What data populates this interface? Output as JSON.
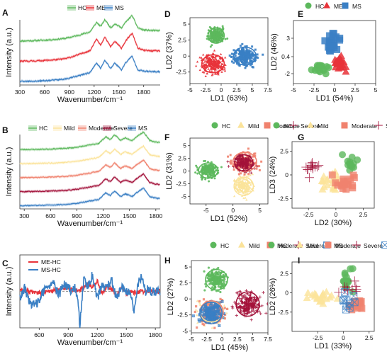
{
  "chart_data": [
    {
      "panel": "A",
      "type": "line",
      "legend": [
        "HC",
        "ME",
        "MS"
      ],
      "colors": [
        "#5cb85c",
        "#e8333a",
        "#3a7fc4"
      ],
      "xlabel": "Wavenumber/cm⁻¹",
      "ylabel": "Intensity (a.u.)",
      "xlim": [
        300,
        2000
      ],
      "xticks": [
        300,
        600,
        900,
        1200,
        1500,
        1800
      ],
      "series": [
        {
          "name": "HC",
          "x": [
            300,
            450,
            600,
            750,
            860,
            1000,
            1090,
            1150,
            1230,
            1280,
            1330,
            1400,
            1450,
            1530,
            1580,
            1660,
            1730,
            1800,
            1900,
            2000
          ],
          "y": [
            0.02,
            0.03,
            0.05,
            0.08,
            0.12,
            0.22,
            0.3,
            0.35,
            0.7,
            0.55,
            0.8,
            0.5,
            0.65,
            0.5,
            0.7,
            0.95,
            0.5,
            0.42,
            0.4,
            0.4
          ]
        },
        {
          "name": "ME",
          "x": [
            300,
            450,
            600,
            750,
            860,
            1000,
            1090,
            1150,
            1230,
            1280,
            1330,
            1400,
            1450,
            1530,
            1580,
            1660,
            1730,
            1800,
            1900,
            2000
          ],
          "y": [
            0.02,
            0.03,
            0.05,
            0.08,
            0.12,
            0.25,
            0.35,
            0.4,
            0.85,
            0.6,
            0.9,
            0.55,
            0.75,
            0.5,
            0.75,
            1.05,
            0.5,
            0.42,
            0.4,
            0.4
          ]
        },
        {
          "name": "MS",
          "x": [
            300,
            450,
            600,
            750,
            860,
            1000,
            1090,
            1150,
            1230,
            1280,
            1330,
            1400,
            1450,
            1530,
            1580,
            1660,
            1730,
            1800,
            1900,
            2000
          ],
          "y": [
            0.02,
            0.03,
            0.05,
            0.08,
            0.12,
            0.22,
            0.3,
            0.35,
            0.7,
            0.5,
            0.8,
            0.5,
            0.7,
            0.45,
            0.7,
            0.95,
            0.45,
            0.4,
            0.38,
            0.38
          ]
        }
      ]
    },
    {
      "panel": "B",
      "type": "line",
      "legend": [
        "HC",
        "Mild",
        "Moderate",
        "Severe",
        "MS"
      ],
      "colors": [
        "#5cb85c",
        "#fbe39a",
        "#f0826e",
        "#a3123a",
        "#3a7fc4"
      ],
      "xlabel": "Wavenumber/cm⁻¹",
      "ylabel": "Intensity (a.u.)",
      "xlim": [
        250,
        1850
      ],
      "xticks": [
        300,
        600,
        900,
        1200,
        1500,
        1800
      ],
      "series": [
        {
          "name": "HC",
          "x": [
            250,
            450,
            600,
            750,
            860,
            1000,
            1090,
            1150,
            1230,
            1280,
            1330,
            1400,
            1450,
            1530,
            1580,
            1660,
            1730,
            1800,
            1850
          ],
          "y": [
            0.02,
            0.03,
            0.05,
            0.08,
            0.12,
            0.22,
            0.3,
            0.35,
            0.7,
            0.55,
            0.8,
            0.5,
            0.65,
            0.5,
            0.7,
            0.95,
            0.5,
            0.42,
            0.4
          ]
        },
        {
          "name": "Mild",
          "x": [
            250,
            450,
            600,
            750,
            860,
            1000,
            1090,
            1150,
            1230,
            1280,
            1330,
            1400,
            1450,
            1530,
            1580,
            1660,
            1730,
            1800,
            1850
          ],
          "y": [
            0.02,
            0.03,
            0.05,
            0.08,
            0.12,
            0.22,
            0.3,
            0.35,
            0.7,
            0.55,
            0.8,
            0.5,
            0.65,
            0.5,
            0.7,
            0.95,
            0.5,
            0.42,
            0.4
          ]
        },
        {
          "name": "Moderate",
          "x": [
            250,
            450,
            600,
            750,
            860,
            1000,
            1090,
            1150,
            1230,
            1280,
            1330,
            1400,
            1450,
            1530,
            1580,
            1660,
            1730,
            1800,
            1850
          ],
          "y": [
            0.02,
            0.03,
            0.05,
            0.08,
            0.12,
            0.22,
            0.3,
            0.35,
            0.7,
            0.55,
            0.8,
            0.5,
            0.65,
            0.5,
            0.7,
            0.95,
            0.5,
            0.42,
            0.4
          ]
        },
        {
          "name": "Severe",
          "x": [
            250,
            450,
            600,
            750,
            860,
            1000,
            1090,
            1150,
            1230,
            1280,
            1330,
            1400,
            1450,
            1530,
            1580,
            1660,
            1730,
            1800,
            1850
          ],
          "y": [
            0.02,
            0.03,
            0.05,
            0.08,
            0.12,
            0.22,
            0.3,
            0.35,
            0.7,
            0.55,
            0.8,
            0.5,
            0.65,
            0.5,
            0.7,
            0.95,
            0.5,
            0.42,
            0.4
          ]
        },
        {
          "name": "MS",
          "x": [
            250,
            450,
            600,
            750,
            860,
            1000,
            1090,
            1150,
            1230,
            1280,
            1330,
            1400,
            1450,
            1530,
            1580,
            1660,
            1730,
            1800,
            1850
          ],
          "y": [
            0.02,
            0.03,
            0.05,
            0.08,
            0.12,
            0.22,
            0.3,
            0.35,
            0.7,
            0.55,
            0.8,
            0.5,
            0.65,
            0.5,
            0.7,
            0.95,
            0.5,
            0.42,
            0.4
          ]
        }
      ]
    },
    {
      "panel": "C",
      "type": "line",
      "legend": [
        "ME-HC",
        "MS-HC"
      ],
      "colors": [
        "#e8333a",
        "#3a7fc4"
      ],
      "xlabel": "Wavenumber/cm⁻¹",
      "ylabel": "Intensity (a.u.)",
      "xlim": [
        400,
        1850
      ],
      "ylim": [
        -1,
        1
      ],
      "xticks": [
        600,
        900,
        1200,
        1500,
        1800
      ],
      "series": [
        {
          "name": "ME-HC",
          "x": [
            400,
            500,
            600,
            700,
            800,
            900,
            950,
            1000,
            1050,
            1100,
            1150,
            1200,
            1250,
            1300,
            1350,
            1400,
            1450,
            1500,
            1550,
            1600,
            1650,
            1700,
            1750,
            1800,
            1850
          ],
          "y": [
            0.05,
            0.0,
            -0.05,
            0.0,
            0.05,
            0.1,
            0.05,
            0.0,
            0.1,
            0.2,
            0.1,
            0.3,
            -0.1,
            0.15,
            0.05,
            -0.1,
            0.1,
            -0.05,
            0.0,
            -0.05,
            0.0,
            0.0,
            0.0,
            0.0,
            0.0
          ]
        },
        {
          "name": "MS-HC",
          "x": [
            400,
            450,
            500,
            560,
            620,
            680,
            740,
            800,
            860,
            900,
            930,
            970,
            1000,
            1020,
            1060,
            1100,
            1150,
            1200,
            1250,
            1300,
            1350,
            1400,
            1450,
            1500,
            1550,
            1580,
            1620,
            1660,
            1700,
            1720,
            1760,
            1800,
            1850
          ],
          "y": [
            -0.2,
            0.1,
            -0.3,
            -0.4,
            -0.1,
            0.1,
            0.25,
            -0.1,
            0.2,
            0.1,
            0.0,
            0.1,
            -0.3,
            -0.9,
            0.3,
            0.1,
            0.45,
            -0.2,
            0.15,
            0.1,
            0.3,
            -0.2,
            0.1,
            0.0,
            -0.1,
            -0.6,
            0.2,
            0.4,
            0.0,
            0.05,
            0.0,
            0.0,
            0.0
          ]
        }
      ]
    },
    {
      "panel": "D",
      "type": "scatter",
      "legend": [
        "HC",
        "ME",
        "MS"
      ],
      "colors": [
        "#5cb85c",
        "#e8333a",
        "#3a7fc4"
      ],
      "xlabel": "LD1 (63%)",
      "ylabel": "LD2 (37%)",
      "xlim": [
        -5,
        7.5
      ],
      "ylim": [
        -4.3,
        6
      ],
      "xticks": [
        -5.0,
        -2.5,
        0.0,
        2.5,
        5.0,
        7.5
      ],
      "yticks": [
        -2.5,
        0.0,
        2.5,
        5.0
      ],
      "clusters": [
        {
          "name": "HC",
          "center": [
            -0.8,
            3.2
          ],
          "spread": [
            1.3,
            1.2
          ],
          "n": 220,
          "marker": "circle"
        },
        {
          "name": "ME",
          "center": [
            -1.3,
            -1.2
          ],
          "spread": [
            1.8,
            1.4
          ],
          "n": 260,
          "marker": "triangle"
        },
        {
          "name": "MS",
          "center": [
            3.8,
            0.0
          ],
          "spread": [
            1.8,
            1.4
          ],
          "n": 240,
          "marker": "square"
        }
      ]
    },
    {
      "panel": "E",
      "type": "scatter",
      "legend": [
        "HC",
        "ME",
        "MS"
      ],
      "colors": [
        "#5cb85c",
        "#e8333a",
        "#3a7fc4"
      ],
      "xlabel": "LD1 (54%)",
      "ylabel": "LD2 (46%)",
      "xlim": [
        -5,
        5
      ],
      "ylim": [
        -3.4,
        5.5
      ],
      "xticks": [
        -5.0,
        -2.5,
        0.0,
        2.5,
        5.0
      ],
      "yticks": [
        -2.0,
        0.4,
        3.0
      ],
      "clusters": [
        {
          "name": "HC",
          "center": [
            -1.8,
            -1.2
          ],
          "spread": [
            1.3,
            0.7
          ],
          "n": 16,
          "marker": "circle"
        },
        {
          "name": "ME",
          "center": [
            0.8,
            -0.6
          ],
          "spread": [
            0.9,
            0.9
          ],
          "n": 28,
          "marker": "triangle"
        },
        {
          "name": "MS",
          "center": [
            0.0,
            2.4
          ],
          "spread": [
            1.0,
            1.3
          ],
          "n": 20,
          "marker": "square"
        }
      ]
    },
    {
      "panel": "F",
      "type": "scatter",
      "legend": [
        "HC",
        "Mild",
        "Moderate",
        "Severe"
      ],
      "colors": [
        "#5cb85c",
        "#fbe39a",
        "#f0826e",
        "#a3123a"
      ],
      "xlabel": "LD1 (52%)",
      "ylabel": "LD2 (31%)",
      "xlim": [
        -8,
        6.5
      ],
      "ylim": [
        -6.5,
        6.5
      ],
      "xticks": [
        -5,
        0,
        5
      ],
      "yticks": [
        -5.0,
        -2.5,
        0.0,
        2.5,
        5.0
      ],
      "clusters": [
        {
          "name": "HC",
          "center": [
            -4.6,
            0.1
          ],
          "spread": [
            1.8,
            1.5
          ],
          "n": 200,
          "marker": "circle"
        },
        {
          "name": "Mild",
          "center": [
            2.0,
            -3.0
          ],
          "spread": [
            1.8,
            1.8
          ],
          "n": 200,
          "marker": "triangle"
        },
        {
          "name": "Moderate",
          "center": [
            2.2,
            1.8
          ],
          "spread": [
            2.2,
            1.9
          ],
          "n": 180,
          "marker": "square"
        },
        {
          "name": "Severe",
          "center": [
            2.0,
            1.6
          ],
          "spread": [
            1.7,
            1.6
          ],
          "n": 180,
          "marker": "plus"
        }
      ]
    },
    {
      "panel": "G",
      "type": "scatter",
      "legend": [
        "HC",
        "Mild",
        "Moderate",
        "Severe"
      ],
      "colors": [
        "#5cb85c",
        "#fbe39a",
        "#f0826e",
        "#a3123a"
      ],
      "xlabel": "LD2 (30%)",
      "ylabel": "LD3 (24%)",
      "xlim": [
        -4,
        3.5
      ],
      "ylim": [
        -3.5,
        3.5
      ],
      "xticks": [
        -2.5,
        0.0,
        2.5
      ],
      "yticks": [
        -2.5,
        0.0,
        2.5
      ],
      "clusters": [
        {
          "name": "HC",
          "center": [
            1.2,
            1.4
          ],
          "spread": [
            0.9,
            1.0
          ],
          "n": 14,
          "marker": "circle"
        },
        {
          "name": "Mild",
          "center": [
            -0.5,
            -0.8
          ],
          "spread": [
            1.0,
            1.2
          ],
          "n": 22,
          "marker": "triangle"
        },
        {
          "name": "Moderate",
          "center": [
            0.8,
            -0.8
          ],
          "spread": [
            1.3,
            1.2
          ],
          "n": 18,
          "marker": "square"
        },
        {
          "name": "Severe",
          "center": [
            -2.2,
            0.9
          ],
          "spread": [
            0.7,
            1.0
          ],
          "n": 14,
          "marker": "plus"
        }
      ]
    },
    {
      "panel": "H",
      "type": "scatter",
      "legend": [
        "HC",
        "Mild",
        "Moderate",
        "Severe",
        "MS"
      ],
      "colors": [
        "#5cb85c",
        "#fbe39a",
        "#f0826e",
        "#a3123a",
        "#3a7fc4"
      ],
      "xlabel": "LD1 (45%)",
      "ylabel": "LD2 (27%)",
      "xlim": [
        -5,
        7.5
      ],
      "ylim": [
        -5.3,
        6
      ],
      "xticks": [
        -5.0,
        -2.5,
        0.0,
        2.5,
        5.0,
        7.5
      ],
      "yticks": [
        -5.0,
        -2.5,
        0.0,
        2.5,
        5.0
      ],
      "clusters": [
        {
          "name": "HC",
          "center": [
            -0.9,
            3.0
          ],
          "spread": [
            1.8,
            1.6
          ],
          "n": 200,
          "marker": "circle"
        },
        {
          "name": "Mild",
          "center": [
            -1.7,
            -2.0
          ],
          "spread": [
            1.9,
            1.6
          ],
          "n": 160,
          "marker": "triangle"
        },
        {
          "name": "Moderate",
          "center": [
            -1.7,
            -2.1
          ],
          "spread": [
            1.9,
            1.8
          ],
          "n": 140,
          "marker": "square"
        },
        {
          "name": "MS",
          "center": [
            -1.8,
            -2.2
          ],
          "spread": [
            1.8,
            1.7
          ],
          "n": 150,
          "marker": "xsquare"
        },
        {
          "name": "Severe",
          "center": [
            4.2,
            -0.8
          ],
          "spread": [
            1.9,
            1.9
          ],
          "n": 220,
          "marker": "plus"
        }
      ]
    },
    {
      "panel": "I",
      "type": "scatter",
      "legend": [
        "HC",
        "Mild",
        "Moderate",
        "Severe",
        "MS"
      ],
      "colors": [
        "#5cb85c",
        "#fbe39a",
        "#f0826e",
        "#a3123a",
        "#3a7fc4"
      ],
      "xlabel": "LD1 (33%)",
      "ylabel": "LD2 (26%)",
      "xlim": [
        -5,
        3
      ],
      "ylim": [
        -5,
        4
      ],
      "xticks": [
        -2.5,
        0.0,
        2.5
      ],
      "yticks": [
        -2.5,
        0.0,
        2.5
      ],
      "clusters": [
        {
          "name": "HC",
          "center": [
            0.3,
            1.5
          ],
          "spread": [
            0.5,
            1.3
          ],
          "n": 16,
          "marker": "circle"
        },
        {
          "name": "Mild",
          "center": [
            -2.0,
            -0.6
          ],
          "spread": [
            1.5,
            0.9
          ],
          "n": 24,
          "marker": "triangle"
        },
        {
          "name": "Moderate",
          "center": [
            1.3,
            -1.5
          ],
          "spread": [
            0.8,
            0.9
          ],
          "n": 14,
          "marker": "square"
        },
        {
          "name": "Severe",
          "center": [
            0.8,
            0.4
          ],
          "spread": [
            0.9,
            1.3
          ],
          "n": 10,
          "marker": "plus"
        },
        {
          "name": "MS",
          "center": [
            0.3,
            -1.2
          ],
          "spread": [
            1.0,
            1.3
          ],
          "n": 10,
          "marker": "xsquare"
        }
      ]
    }
  ]
}
